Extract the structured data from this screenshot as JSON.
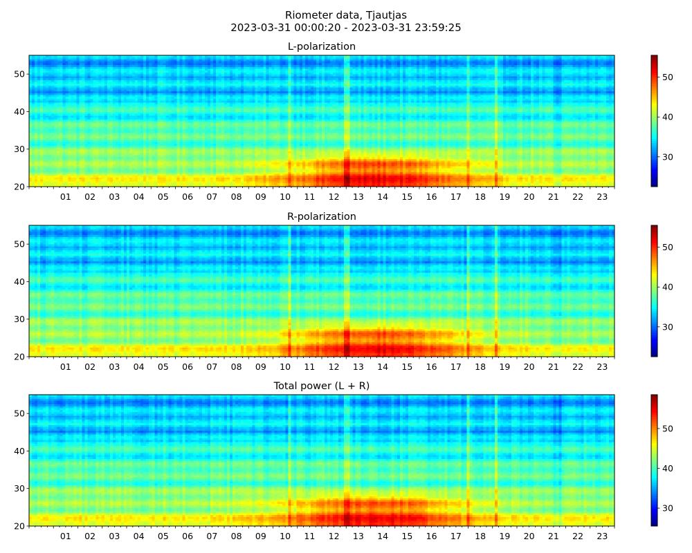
{
  "title_line1": "Riometer data, Tjautjas",
  "title_line2": "2023-03-31 00:00:20 - 2023-03-31 23:59:25",
  "chart_data": [
    {
      "type": "heatmap",
      "title": "L-polarization",
      "xlabel": "",
      "ylabel": "",
      "xlim": [
        0,
        24
      ],
      "ylim": [
        20,
        55
      ],
      "x_tick_labels": [
        "01",
        "02",
        "03",
        "04",
        "05",
        "06",
        "07",
        "08",
        "09",
        "10",
        "11",
        "12",
        "13",
        "14",
        "15",
        "16",
        "17",
        "18",
        "19",
        "20",
        "21",
        "22",
        "23"
      ],
      "y_ticks": [
        20,
        30,
        40,
        50
      ],
      "colorbar": {
        "min": 22.5,
        "max": 55.5,
        "ticks": [
          30,
          40,
          50
        ],
        "colormap": "jet"
      }
    },
    {
      "type": "heatmap",
      "title": "R-polarization",
      "xlabel": "",
      "ylabel": "",
      "xlim": [
        0,
        24
      ],
      "ylim": [
        20,
        55
      ],
      "x_tick_labels": [
        "01",
        "02",
        "03",
        "04",
        "05",
        "06",
        "07",
        "08",
        "09",
        "10",
        "11",
        "12",
        "13",
        "14",
        "15",
        "16",
        "17",
        "18",
        "19",
        "20",
        "21",
        "22",
        "23"
      ],
      "y_ticks": [
        20,
        30,
        40,
        50
      ],
      "colorbar": {
        "min": 22.5,
        "max": 55.5,
        "ticks": [
          30,
          40,
          50
        ],
        "colormap": "jet"
      }
    },
    {
      "type": "heatmap",
      "title": "Total power (L + R)",
      "xlabel": "",
      "ylabel": "",
      "xlim": [
        0,
        24
      ],
      "ylim": [
        20,
        55
      ],
      "x_tick_labels": [
        "01",
        "02",
        "03",
        "04",
        "05",
        "06",
        "07",
        "08",
        "09",
        "10",
        "11",
        "12",
        "13",
        "14",
        "15",
        "16",
        "17",
        "18",
        "19",
        "20",
        "21",
        "22",
        "23"
      ],
      "y_ticks": [
        20,
        30,
        40,
        50
      ],
      "colorbar": {
        "min": 25.5,
        "max": 58.5,
        "ticks": [
          30,
          40,
          50
        ],
        "colormap": "jet"
      }
    }
  ]
}
